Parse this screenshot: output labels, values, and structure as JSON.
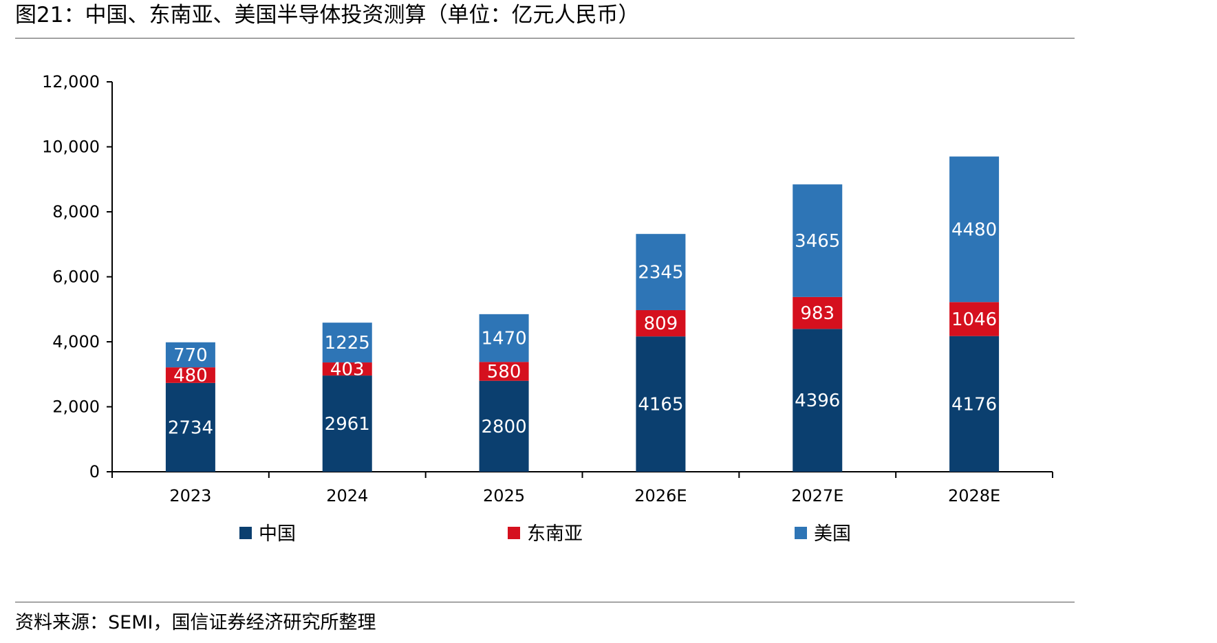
{
  "figure": {
    "title": "图21：中国、东南亚、美国半导体投资测算（单位：亿元人民币）",
    "source": "资料来源：SEMI，国信证券经济研究所整理"
  },
  "chart_data": {
    "type": "bar",
    "stacked": true,
    "categories": [
      "2023",
      "2024",
      "2025",
      "2026E",
      "2027E",
      "2028E"
    ],
    "series": [
      {
        "name": "中国",
        "color": "#0b3f6f",
        "values": [
          2734,
          2961,
          2800,
          4165,
          4396,
          4176
        ]
      },
      {
        "name": "东南亚",
        "color": "#d5101e",
        "values": [
          480,
          403,
          580,
          809,
          983,
          1046
        ]
      },
      {
        "name": "美国",
        "color": "#2e75b6",
        "values": [
          770,
          1225,
          1470,
          2345,
          3465,
          4480
        ]
      }
    ],
    "y_ticks": [
      "0",
      "2,000",
      "4,000",
      "6,000",
      "8,000",
      "10,000",
      "12,000"
    ],
    "ylim": [
      0,
      12000
    ],
    "title": "",
    "xlabel": "",
    "ylabel": "",
    "grid": false,
    "legend_position": "bottom"
  }
}
